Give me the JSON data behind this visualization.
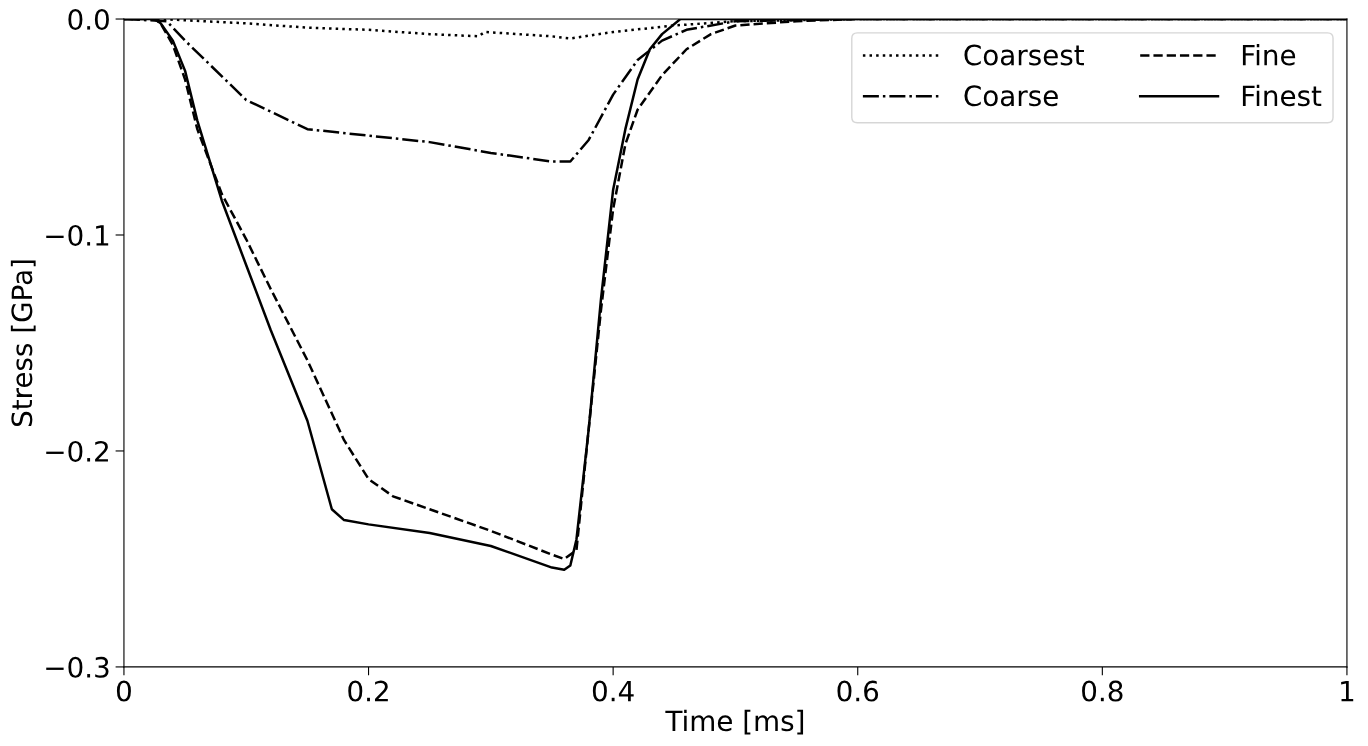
{
  "chart_data": {
    "type": "line",
    "xlabel": "Time [ms]",
    "ylabel": "Stress [GPa]",
    "xlim": [
      0,
      1
    ],
    "ylim": [
      -0.3,
      0
    ],
    "xticks": [
      0,
      0.2,
      0.4,
      0.6,
      0.8,
      1
    ],
    "yticks": [
      {
        "value": -0.3,
        "label": "−0.3"
      },
      {
        "value": -0.2,
        "label": "−0.2"
      },
      {
        "value": -0.1,
        "label": "−0.1"
      },
      {
        "value": 0,
        "label": "0.0"
      }
    ],
    "legend": "top right",
    "grid": false,
    "marker": "none",
    "series": [
      {
        "name": "Coarsest",
        "color": "#000000",
        "line_style": "dotted",
        "x": [
          0,
          0.03,
          0.1,
          0.15,
          0.2,
          0.25,
          0.29,
          0.295,
          0.35,
          0.365,
          0.4,
          0.45,
          0.5,
          0.6,
          1
        ],
        "values": [
          0,
          0,
          -0.002,
          -0.004,
          -0.005,
          -0.007,
          -0.008,
          -0.006,
          -0.008,
          -0.009,
          -0.006,
          -0.003,
          -0.001,
          0,
          0
        ]
      },
      {
        "name": "Coarse",
        "color": "#000000",
        "line_style": "dashdot",
        "x": [
          0,
          0.035,
          0.05,
          0.07,
          0.1,
          0.15,
          0.2,
          0.25,
          0.3,
          0.35,
          0.365,
          0.38,
          0.4,
          0.42,
          0.44,
          0.46,
          0.5,
          0.6,
          1
        ],
        "values": [
          0,
          -0.001,
          -0.01,
          -0.021,
          -0.0375,
          -0.051,
          -0.054,
          -0.057,
          -0.062,
          -0.066,
          -0.066,
          -0.056,
          -0.035,
          -0.019,
          -0.01,
          -0.005,
          -0.001,
          0,
          0
        ]
      },
      {
        "name": "Fine",
        "color": "#000000",
        "line_style": "dashed",
        "x": [
          0,
          0.025,
          0.03,
          0.04,
          0.05,
          0.06,
          0.08,
          0.1,
          0.12,
          0.15,
          0.18,
          0.2,
          0.22,
          0.25,
          0.3,
          0.35,
          0.36,
          0.37,
          0.38,
          0.39,
          0.4,
          0.41,
          0.42,
          0.44,
          0.46,
          0.48,
          0.5,
          0.55,
          0.6,
          1
        ],
        "values": [
          0,
          0,
          -0.002,
          -0.012,
          -0.028,
          -0.051,
          -0.081,
          -0.102,
          -0.125,
          -0.158,
          -0.195,
          -0.213,
          -0.221,
          -0.227,
          -0.237,
          -0.248,
          -0.25,
          -0.246,
          -0.19,
          -0.135,
          -0.088,
          -0.058,
          -0.042,
          -0.026,
          -0.014,
          -0.007,
          -0.003,
          -0.001,
          0,
          0
        ]
      },
      {
        "name": "Finest",
        "color": "#000000",
        "line_style": "solid",
        "x": [
          0,
          0.025,
          0.03,
          0.04,
          0.05,
          0.06,
          0.08,
          0.1,
          0.12,
          0.15,
          0.17,
          0.18,
          0.2,
          0.25,
          0.3,
          0.35,
          0.36,
          0.365,
          0.37,
          0.38,
          0.39,
          0.4,
          0.41,
          0.42,
          0.43,
          0.44,
          0.455,
          1
        ],
        "values": [
          0,
          0,
          -0.002,
          -0.01,
          -0.024,
          -0.047,
          -0.084,
          -0.114,
          -0.144,
          -0.186,
          -0.227,
          -0.232,
          -0.234,
          -0.238,
          -0.244,
          -0.254,
          -0.255,
          -0.253,
          -0.241,
          -0.19,
          -0.13,
          -0.079,
          -0.051,
          -0.028,
          -0.014,
          -0.007,
          0,
          0
        ]
      }
    ]
  }
}
